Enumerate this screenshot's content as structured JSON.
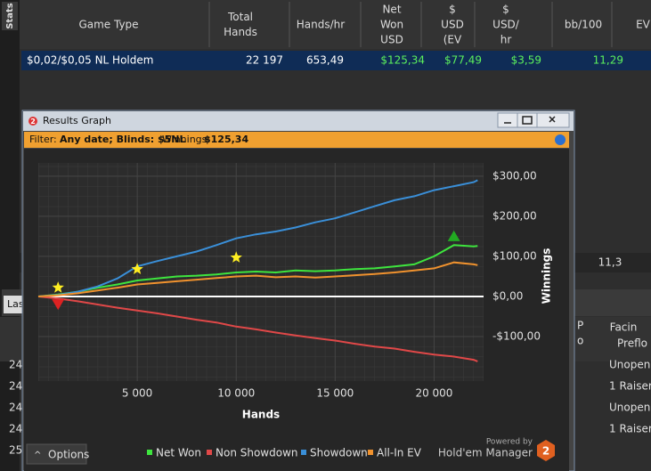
{
  "side_tab": "Stats",
  "stats_table": {
    "columns": [
      [
        "Game Type"
      ],
      [
        "Total",
        "Hands"
      ],
      [
        "Hands/hr"
      ],
      [
        "Net",
        "Won",
        "USD"
      ],
      [
        "$",
        "USD",
        "(EV"
      ],
      [
        "$",
        "USD/",
        "hr"
      ],
      [
        "bb/100"
      ],
      [
        "EV"
      ]
    ],
    "row": [
      "$0,02/$0,05 NL Holdem",
      "22 197",
      "653,49",
      "$125,34",
      "$77,49",
      "$3,59",
      "11,29"
    ]
  },
  "background": {
    "cell": "11,3",
    "tab": "Las",
    "right_header": [
      "P",
      "o",
      "Facin",
      "Preflo"
    ],
    "right_rows": [
      "Unopene",
      "1 Raiser",
      "Unopene",
      "1 Raiser"
    ],
    "left_rows": [
      "24",
      "24",
      "24",
      "24",
      "25"
    ]
  },
  "window": {
    "title": "Results Graph",
    "icon": "2",
    "filter": {
      "label": "Filter:",
      "text": "Any date; Blinds: $5NL",
      "winnings_label": "Winnings:",
      "winnings": "$125,34"
    },
    "options": "Options",
    "powered_by": "Powered by",
    "brand": "Hold'em Manager",
    "brand_icon": "2"
  },
  "chart_data": {
    "type": "line",
    "x_label": "Hands",
    "y_label": "Winnings",
    "x": [
      0,
      1000,
      2000,
      3000,
      4000,
      5000,
      6000,
      7000,
      8000,
      9000,
      10000,
      11000,
      12000,
      13000,
      14000,
      15000,
      16000,
      17000,
      18000,
      19000,
      20000,
      21000,
      22000,
      22197
    ],
    "series": [
      {
        "name": "Net Won",
        "color": "#3ee53e",
        "values": [
          0,
          5,
          12,
          22,
          30,
          40,
          45,
          50,
          52,
          55,
          60,
          62,
          60,
          65,
          63,
          65,
          68,
          70,
          75,
          80,
          100,
          128,
          125,
          126
        ]
      },
      {
        "name": "Non Showdown",
        "color": "#e04848",
        "values": [
          0,
          -5,
          -12,
          -20,
          -28,
          -35,
          -42,
          -50,
          -58,
          -65,
          -75,
          -82,
          -90,
          -97,
          -104,
          -110,
          -118,
          -125,
          -130,
          -138,
          -145,
          -150,
          -158,
          -162
        ]
      },
      {
        "name": "Showdown",
        "color": "#3a8fd8",
        "values": [
          0,
          4,
          12,
          25,
          45,
          75,
          88,
          100,
          112,
          128,
          145,
          155,
          162,
          172,
          185,
          195,
          210,
          225,
          240,
          250,
          265,
          275,
          285,
          290
        ]
      },
      {
        "name": "All-In EV",
        "color": "#f0922e",
        "values": [
          0,
          3,
          8,
          15,
          22,
          30,
          34,
          38,
          42,
          46,
          50,
          52,
          48,
          50,
          47,
          50,
          53,
          56,
          60,
          65,
          70,
          85,
          80,
          78
        ]
      }
    ],
    "markers": [
      {
        "shape": "star",
        "color": "#ffee22",
        "x": 1000,
        "y": 22
      },
      {
        "shape": "star",
        "color": "#ffee22",
        "x": 5000,
        "y": 68
      },
      {
        "shape": "star",
        "color": "#ffee22",
        "x": 10000,
        "y": 97
      },
      {
        "shape": "up",
        "color": "#22aa22",
        "x": 21000,
        "y": 149
      },
      {
        "shape": "down",
        "color": "#dd2222",
        "x": 1000,
        "y": -18
      }
    ],
    "xlim": [
      0,
      22500
    ],
    "ylim": [
      -211,
      333
    ],
    "xticks": [
      {
        "value": 5000,
        "label": "5 000"
      },
      {
        "value": 10000,
        "label": "10 000"
      },
      {
        "value": 15000,
        "label": "15 000"
      },
      {
        "value": 20000,
        "label": "20 000"
      }
    ],
    "yticks": [
      {
        "value": -100,
        "label": "-$100,00"
      },
      {
        "value": 0,
        "label": "$0,00"
      },
      {
        "value": 100,
        "label": "$100,00"
      },
      {
        "value": 200,
        "label": "$200,00"
      },
      {
        "value": 300,
        "label": "$300,00"
      }
    ],
    "grid": true
  }
}
